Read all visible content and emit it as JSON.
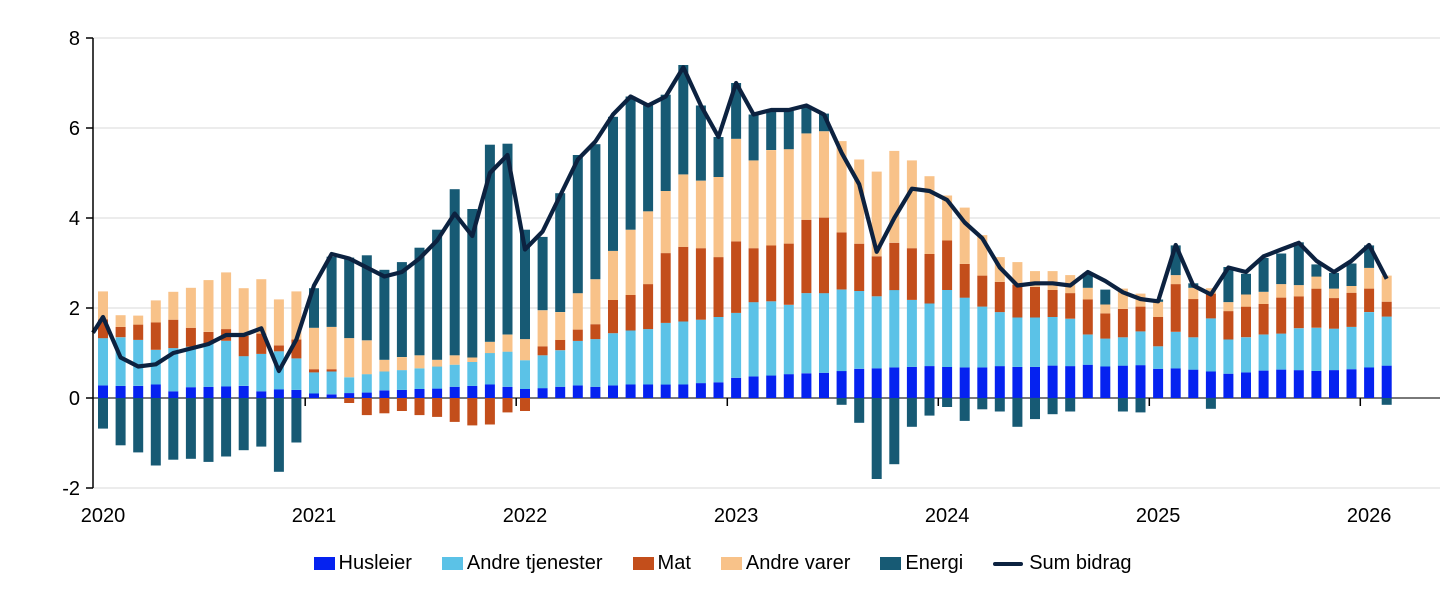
{
  "figure": {
    "background": "#ffffff"
  },
  "axes": {
    "ylim": [
      -2,
      8
    ],
    "y_ticks": [
      {
        "label": "8",
        "value": 8
      },
      {
        "label": "6",
        "value": 6
      },
      {
        "label": "4",
        "value": 4
      },
      {
        "label": "2",
        "value": 2
      },
      {
        "label": "0",
        "value": 0
      },
      {
        "label": "-2",
        "value": -2
      }
    ],
    "x_ticks": [
      {
        "label": "2020"
      },
      {
        "label": "2021"
      },
      {
        "label": "2022"
      },
      {
        "label": "2023"
      },
      {
        "label": "2024"
      },
      {
        "label": "2025"
      },
      {
        "label": "2026"
      }
    ],
    "grid": true
  },
  "colors": {
    "husleier": "#0522f0",
    "tjenester": "#5bc2e7",
    "mat": "#c34e1b",
    "varer": "#f8c289",
    "energi": "#175a74",
    "sum_line": "#0c2240",
    "gridline": "#d9d9d9",
    "zero_line": "#4d4d4d",
    "spine": "#000000",
    "text": "#000000"
  },
  "legend": [
    {
      "label": "Husleier",
      "color": "#0522f0",
      "type": "box"
    },
    {
      "label": "Andre tjenester",
      "color": "#5bc2e7",
      "type": "box"
    },
    {
      "label": "Mat",
      "color": "#c34e1b",
      "type": "box"
    },
    {
      "label": "Andre varer",
      "color": "#f8c289",
      "type": "box"
    },
    {
      "label": "Energi",
      "color": "#175a74",
      "type": "box"
    },
    {
      "label": "Sum bidrag",
      "color": "#0c2240",
      "type": "line"
    }
  ],
  "chart_data": {
    "type": "stacked-bar+line",
    "ylim": [
      -2,
      8
    ],
    "months": [
      "2020M01",
      "2020M02",
      "2020M03",
      "2020M04",
      "2020M05",
      "2020M06",
      "2020M07",
      "2020M08",
      "2020M09",
      "2020M10",
      "2020M11",
      "2020M12",
      "2021M01",
      "2021M02",
      "2021M03",
      "2021M04",
      "2021M05",
      "2021M06",
      "2021M07",
      "2021M08",
      "2021M09",
      "2021M10",
      "2021M11",
      "2021M12",
      "2022M01",
      "2022M02",
      "2022M03",
      "2022M04",
      "2022M05",
      "2022M06",
      "2022M07",
      "2022M08",
      "2022M09",
      "2022M10",
      "2022M11",
      "2022M12",
      "2023M01",
      "2023M02",
      "2023M03",
      "2023M04",
      "2023M05",
      "2023M06",
      "2023M07",
      "2023M08",
      "2023M09",
      "2023M10",
      "2023M11",
      "2023M12",
      "2024M01",
      "2024M02",
      "2024M03",
      "2024M04",
      "2024M05",
      "2024M06",
      "2024M07",
      "2024M08",
      "2024M09",
      "2024M10",
      "2024M11",
      "2024M12",
      "2025M01",
      "2025M02",
      "2025M03",
      "2025M04",
      "2025M05",
      "2025M06",
      "2025M07",
      "2025M08",
      "2025M09",
      "2025M10",
      "2025M11",
      "2025M12",
      "2026M01",
      "2026M02"
    ],
    "series": [
      {
        "name": "Husleier",
        "key": "husleier",
        "values": [
          0.28,
          0.27,
          0.27,
          0.3,
          0.15,
          0.24,
          0.25,
          0.26,
          0.27,
          0.15,
          0.19,
          0.18,
          0.1,
          0.08,
          0.11,
          0.12,
          0.17,
          0.18,
          0.2,
          0.21,
          0.25,
          0.27,
          0.3,
          0.25,
          0.2,
          0.22,
          0.25,
          0.28,
          0.25,
          0.28,
          0.3,
          0.3,
          0.3,
          0.3,
          0.33,
          0.35,
          0.45,
          0.48,
          0.5,
          0.53,
          0.55,
          0.56,
          0.6,
          0.65,
          0.66,
          0.68,
          0.69,
          0.71,
          0.69,
          0.68,
          0.68,
          0.71,
          0.69,
          0.69,
          0.72,
          0.71,
          0.74,
          0.7,
          0.72,
          0.73,
          0.65,
          0.66,
          0.63,
          0.59,
          0.54,
          0.57,
          0.61,
          0.63,
          0.62,
          0.6,
          0.62,
          0.64,
          0.68,
          0.72
        ]
      },
      {
        "name": "Andre tjenester",
        "key": "tjenester",
        "values": [
          1.05,
          1.08,
          1.02,
          0.77,
          0.96,
          0.9,
          0.95,
          1.01,
          0.66,
          0.83,
          0.85,
          0.7,
          0.47,
          0.51,
          0.35,
          0.41,
          0.42,
          0.44,
          0.46,
          0.49,
          0.49,
          0.53,
          0.7,
          0.78,
          0.64,
          0.73,
          0.81,
          0.99,
          1.06,
          1.16,
          1.2,
          1.23,
          1.37,
          1.4,
          1.41,
          1.45,
          1.44,
          1.65,
          1.65,
          1.54,
          1.78,
          1.77,
          1.81,
          1.73,
          1.6,
          1.72,
          1.49,
          1.39,
          1.71,
          1.55,
          1.35,
          1.2,
          1.1,
          1.1,
          1.08,
          1.05,
          0.67,
          0.62,
          0.63,
          0.75,
          0.5,
          0.81,
          0.72,
          1.18,
          0.76,
          0.78,
          0.8,
          0.8,
          0.93,
          0.96,
          0.92,
          0.94,
          1.23,
          1.09
        ]
      },
      {
        "name": "Mat",
        "key": "mat",
        "values": [
          0.42,
          0.23,
          0.34,
          0.61,
          0.63,
          0.42,
          0.27,
          0.26,
          0.45,
          0.45,
          0.13,
          0.42,
          0.07,
          0.05,
          -0.11,
          -0.38,
          -0.34,
          -0.29,
          -0.38,
          -0.42,
          -0.53,
          -0.61,
          -0.59,
          -0.32,
          -0.29,
          0.2,
          0.23,
          0.25,
          0.33,
          0.74,
          0.79,
          1.0,
          1.55,
          1.66,
          1.59,
          1.33,
          1.59,
          1.2,
          1.24,
          1.36,
          1.63,
          1.68,
          1.27,
          1.05,
          0.89,
          1.05,
          1.15,
          1.1,
          1.1,
          0.75,
          0.69,
          0.67,
          0.73,
          0.68,
          0.6,
          0.57,
          0.78,
          0.56,
          0.63,
          0.55,
          0.65,
          1.06,
          0.85,
          0.55,
          0.63,
          0.68,
          0.68,
          0.8,
          0.71,
          0.87,
          0.68,
          0.76,
          0.52,
          0.33
        ]
      },
      {
        "name": "Andre varer",
        "key": "varer",
        "values": [
          0.62,
          0.26,
          0.2,
          0.49,
          0.62,
          0.89,
          1.15,
          1.26,
          1.06,
          1.21,
          1.02,
          1.07,
          0.92,
          0.94,
          0.87,
          0.75,
          0.26,
          0.29,
          0.29,
          0.15,
          0.21,
          0.1,
          0.25,
          0.38,
          0.47,
          0.8,
          0.62,
          0.81,
          1.0,
          1.09,
          1.45,
          1.62,
          1.38,
          1.61,
          1.5,
          1.78,
          2.28,
          1.95,
          2.12,
          2.1,
          1.92,
          1.92,
          2.03,
          1.87,
          1.88,
          2.04,
          1.95,
          1.73,
          1.0,
          1.25,
          0.9,
          0.55,
          0.5,
          0.35,
          0.42,
          0.4,
          0.26,
          0.2,
          0.45,
          0.29,
          0.34,
          0.2,
          0.25,
          0.12,
          0.2,
          0.27,
          0.27,
          0.3,
          0.25,
          0.27,
          0.21,
          0.15,
          0.46,
          0.58
        ]
      },
      {
        "name": "Energi",
        "key": "energi",
        "values": [
          -0.68,
          -1.05,
          -1.21,
          -1.5,
          -1.37,
          -1.35,
          -1.42,
          -1.3,
          -1.16,
          -1.08,
          -1.64,
          -0.99,
          0.88,
          1.56,
          1.79,
          1.89,
          2.0,
          2.11,
          2.39,
          2.89,
          3.69,
          3.3,
          4.38,
          4.24,
          2.43,
          1.63,
          2.64,
          3.07,
          3.0,
          2.98,
          2.96,
          2.35,
          2.14,
          2.43,
          1.67,
          0.89,
          1.24,
          1.02,
          0.89,
          0.85,
          0.62,
          0.39,
          -0.15,
          -0.55,
          -1.8,
          -1.47,
          -0.64,
          -0.39,
          -0.2,
          -0.51,
          -0.25,
          -0.3,
          -0.64,
          -0.47,
          -0.36,
          -0.3,
          0.33,
          0.33,
          -0.3,
          -0.32,
          0.05,
          0.66,
          0.1,
          -0.24,
          0.78,
          0.46,
          0.75,
          0.68,
          0.95,
          0.27,
          0.35,
          0.5,
          0.5,
          -0.15
        ]
      }
    ],
    "line": {
      "name": "Sum bidrag",
      "pre_value": 1.45,
      "values": [
        1.8,
        0.9,
        0.7,
        0.75,
        1.0,
        1.1,
        1.2,
        1.4,
        1.4,
        1.55,
        0.6,
        1.3,
        2.5,
        3.2,
        3.1,
        2.9,
        2.7,
        2.8,
        3.1,
        3.5,
        4.1,
        3.6,
        5.0,
        5.4,
        3.3,
        3.7,
        4.5,
        5.3,
        5.7,
        6.3,
        6.7,
        6.5,
        6.7,
        7.35,
        6.5,
        5.8,
        7.0,
        6.3,
        6.4,
        6.4,
        6.5,
        6.3,
        5.45,
        4.75,
        3.25,
        4.0,
        4.65,
        4.6,
        4.4,
        3.9,
        3.55,
        2.9,
        2.5,
        2.55,
        2.55,
        2.5,
        2.8,
        2.6,
        2.35,
        2.2,
        2.15,
        3.4,
        2.5,
        2.3,
        2.9,
        2.8,
        3.15,
        3.3,
        3.45,
        3.05,
        2.8,
        3.05,
        3.4,
        2.65
      ]
    }
  }
}
